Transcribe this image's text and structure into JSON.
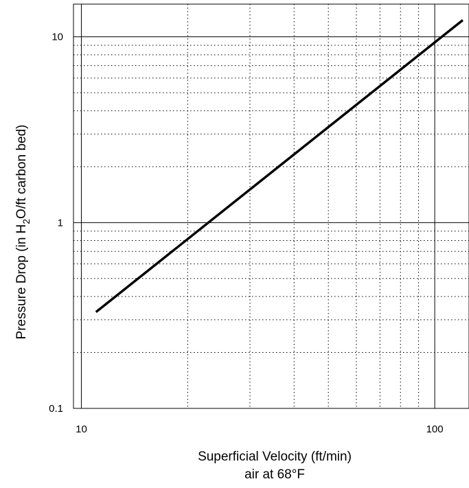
{
  "chart_data": {
    "type": "line",
    "x_scale": "log",
    "y_scale": "log",
    "xlim": [
      9.5,
      125
    ],
    "ylim": [
      0.1,
      15
    ],
    "x_ticks": [
      10,
      100
    ],
    "x_tick_labels": [
      "10",
      "100"
    ],
    "y_ticks": [
      0.1,
      1,
      10
    ],
    "y_tick_labels": [
      "0.1",
      "1",
      "10"
    ],
    "xlabel": "Superficial Velocity (ft/min)",
    "xlabel_line2": "air at 68°F",
    "ylabel_prefix": "Pressure Drop (in H",
    "ylabel_sub": "2",
    "ylabel_suffix": "O/ft carbon bed)",
    "grid": {
      "major": "solid",
      "minor": "dotted"
    },
    "series": [
      {
        "x": [
          11,
          120
        ],
        "y": [
          0.33,
          12.3
        ]
      }
    ],
    "line_color": "#000000"
  }
}
